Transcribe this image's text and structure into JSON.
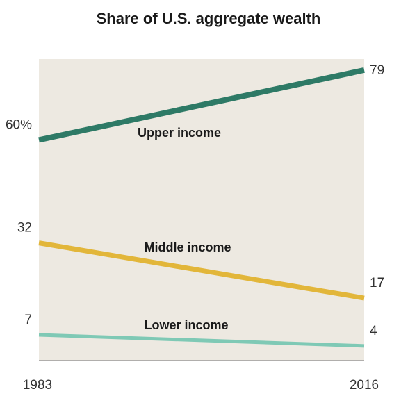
{
  "chart_data": {
    "type": "line",
    "title": "Share of U.S. aggregate wealth",
    "x": [
      "1983",
      "2016"
    ],
    "series": [
      {
        "name": "Upper income",
        "values": [
          60,
          79
        ],
        "start_label": "60%",
        "end_label": "79",
        "color": "#2e7a66"
      },
      {
        "name": "Middle income",
        "values": [
          32,
          17
        ],
        "start_label": "32",
        "end_label": "17",
        "color": "#e2b63a"
      },
      {
        "name": "Lower income",
        "values": [
          7,
          4
        ],
        "start_label": "7",
        "end_label": "4",
        "color": "#7fc9b5"
      }
    ],
    "ylim": [
      0,
      82
    ],
    "xlabel": "",
    "ylabel": "",
    "grid": false,
    "background_color": "#ede9e1"
  }
}
